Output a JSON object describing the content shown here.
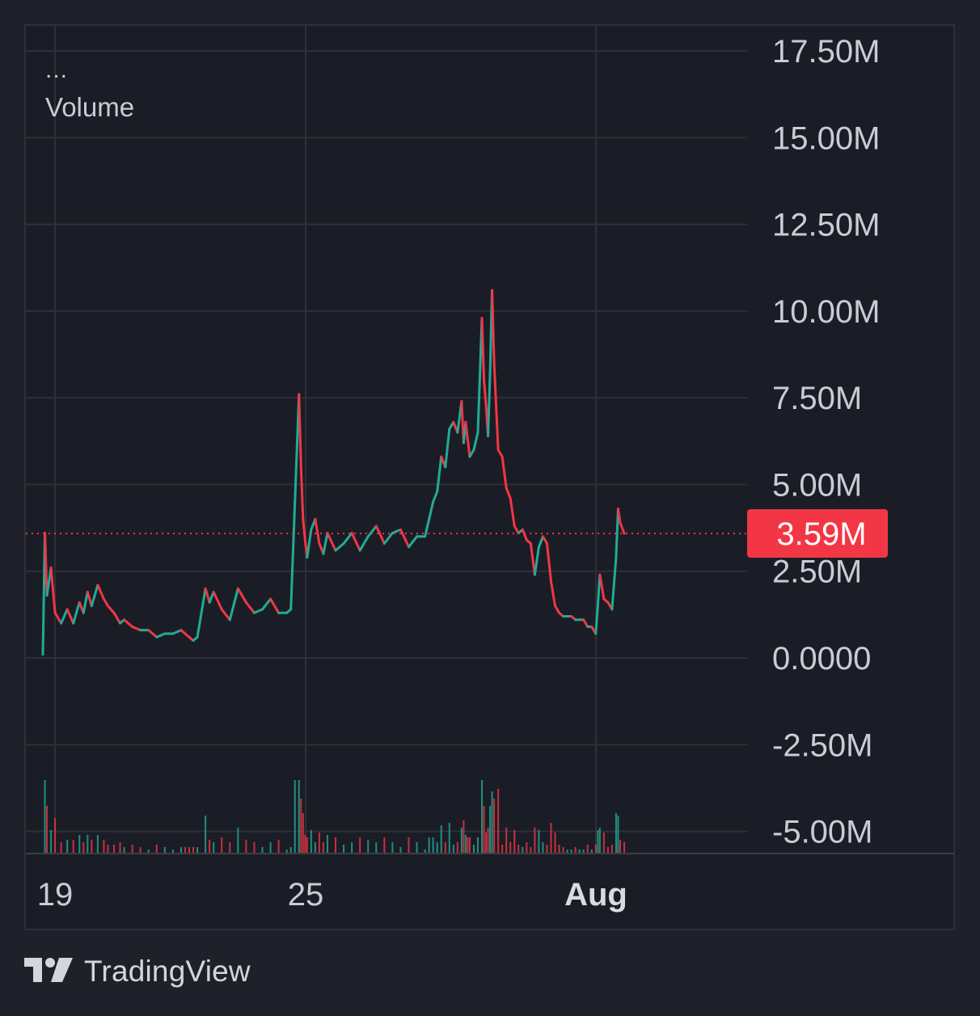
{
  "legend": {
    "menu_dots": "...",
    "indicator": "Volume"
  },
  "last_value_label": "3.59M",
  "brand": {
    "name": "TradingView",
    "logo_icon": "tradingview-logo-icon"
  },
  "colors": {
    "up": "#22ab94",
    "down": "#f23645",
    "background": "#1b1d26",
    "grid": "#2e3039",
    "text": "#c9ccd4",
    "last_value_bg": "#f23645"
  },
  "chart_data": {
    "type": "line",
    "yticks": [
      "17.50M",
      "15.00M",
      "12.50M",
      "10.00M",
      "7.50M",
      "5.00M",
      "2.50M",
      "0.0000",
      "-2.50M",
      "-5.00M"
    ],
    "ytick_values": [
      17500000,
      15000000,
      12500000,
      10000000,
      7500000,
      5000000,
      2500000,
      0,
      -2500000,
      -5000000
    ],
    "ylim": [
      -5000000,
      17500000
    ],
    "xticks": [
      {
        "label": "19",
        "x": 0.3,
        "bold": false
      },
      {
        "label": "25",
        "x": 6.5,
        "bold": false
      },
      {
        "label": "Aug",
        "x": 13.7,
        "bold": true
      }
    ],
    "xlim": [
      -0.4,
      17.5
    ],
    "last_value": 3590000,
    "series": [
      {
        "x": [
          0.0,
          0.05,
          0.1,
          0.2,
          0.3,
          0.45,
          0.6,
          0.75,
          0.9,
          1.0,
          1.1,
          1.2,
          1.35,
          1.5,
          1.6,
          1.75,
          1.9,
          2.0,
          2.2,
          2.4,
          2.6,
          2.8,
          3.0,
          3.2,
          3.4,
          3.5,
          3.6,
          3.7,
          3.8,
          4.0,
          4.1,
          4.2,
          4.4,
          4.6,
          4.8,
          5.0,
          5.2,
          5.4,
          5.6,
          5.8,
          6.0,
          6.1,
          6.2,
          6.3,
          6.35,
          6.4,
          6.45,
          6.5,
          6.6,
          6.7,
          6.8,
          6.9,
          7.0,
          7.2,
          7.4,
          7.6,
          7.8,
          8.0,
          8.2,
          8.4,
          8.6,
          8.8,
          9.0,
          9.2,
          9.4,
          9.5,
          9.6,
          9.7,
          9.8,
          9.9,
          10.0,
          10.1,
          10.2,
          10.3,
          10.35,
          10.4,
          10.45,
          10.5,
          10.6,
          10.7,
          10.8,
          10.85,
          10.9,
          10.95,
          11.0,
          11.05,
          11.1,
          11.2,
          11.3,
          11.4,
          11.5,
          11.6,
          11.7,
          11.8,
          11.9,
          12.0,
          12.1,
          12.2,
          12.3,
          12.4,
          12.5,
          12.6,
          12.7,
          12.8,
          12.9,
          13.0,
          13.1,
          13.2,
          13.3,
          13.4,
          13.5,
          13.6,
          13.65,
          13.7,
          13.8,
          13.9,
          14.0,
          14.1,
          14.15,
          14.2,
          14.3
        ],
        "y": [
          0.1,
          3.6,
          1.8,
          2.6,
          1.3,
          1.0,
          1.4,
          1.0,
          1.6,
          1.3,
          1.9,
          1.5,
          2.1,
          1.7,
          1.5,
          1.3,
          1.0,
          1.1,
          0.9,
          0.8,
          0.8,
          0.6,
          0.7,
          0.7,
          0.8,
          0.7,
          0.6,
          0.5,
          0.6,
          2.0,
          1.6,
          1.9,
          1.4,
          1.1,
          2.0,
          1.6,
          1.3,
          1.4,
          1.7,
          1.3,
          1.3,
          1.4,
          4.5,
          7.6,
          5.5,
          4.0,
          3.4,
          2.9,
          3.7,
          4.0,
          3.3,
          3.0,
          3.6,
          3.1,
          3.3,
          3.6,
          3.1,
          3.5,
          3.8,
          3.3,
          3.6,
          3.7,
          3.2,
          3.5,
          3.5,
          4.0,
          4.5,
          4.8,
          5.8,
          5.5,
          6.6,
          6.8,
          6.5,
          7.4,
          6.2,
          6.8,
          6.3,
          5.8,
          6.0,
          6.5,
          9.8,
          8.0,
          7.3,
          6.4,
          8.2,
          10.6,
          8.5,
          6.0,
          5.8,
          4.9,
          4.6,
          3.8,
          3.6,
          3.7,
          3.4,
          3.3,
          2.4,
          3.2,
          3.5,
          3.3,
          2.2,
          1.5,
          1.3,
          1.2,
          1.2,
          1.2,
          1.1,
          1.1,
          1.1,
          0.9,
          0.9,
          0.7,
          1.5,
          2.4,
          1.7,
          1.6,
          1.4,
          2.9,
          4.3,
          3.9,
          3.59
        ]
      }
    ]
  }
}
